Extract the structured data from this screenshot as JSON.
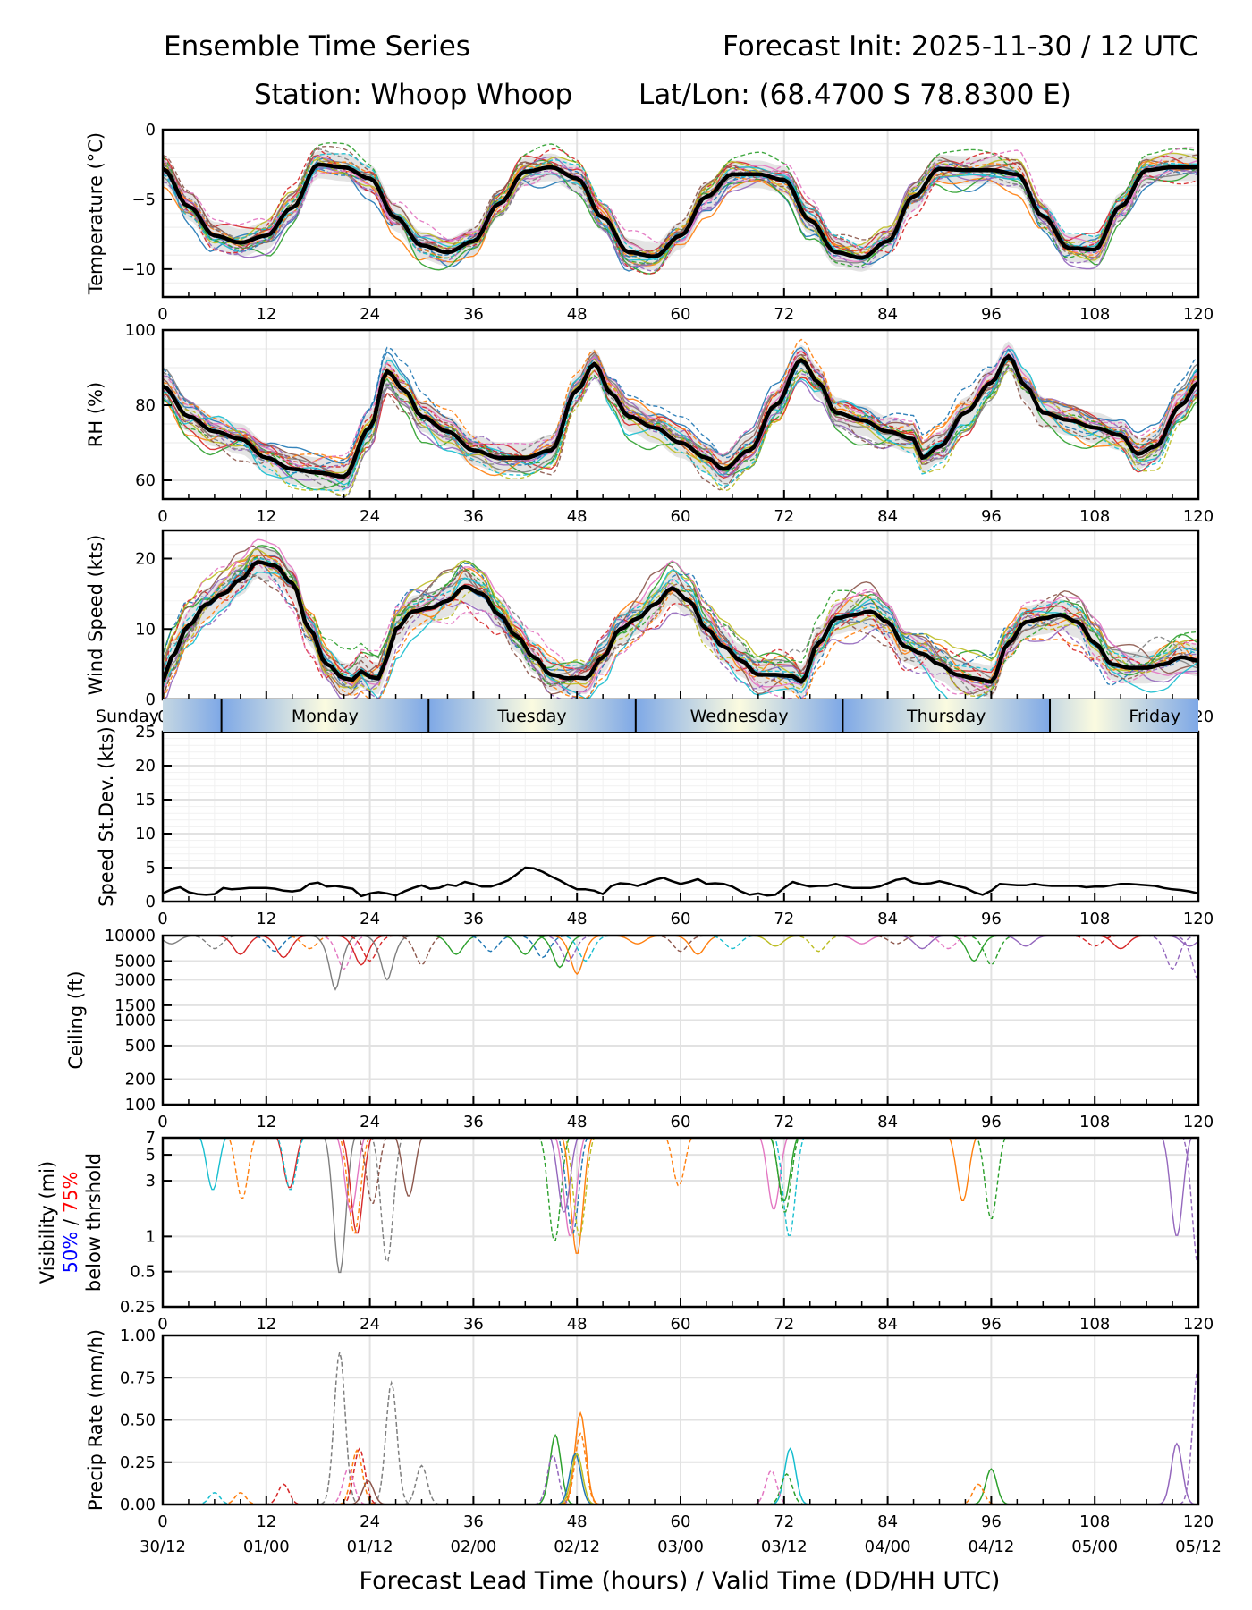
{
  "header": {
    "title": "Ensemble Time Series",
    "init": "Forecast Init: 2025-11-30 / 12 UTC",
    "station": "Station: Whoop Whoop",
    "latlon": "Lat/Lon: (68.4700 S 78.8300 E)"
  },
  "chart_data": [
    {
      "type": "line",
      "id": "temperature",
      "ylabel": "Temperature (°C)",
      "ylim": [
        -12,
        0
      ],
      "yticks": [
        0,
        -5,
        -10
      ],
      "xlim": [
        0,
        120
      ],
      "xticks": [
        0,
        12,
        24,
        36,
        48,
        60,
        72,
        84,
        96,
        108,
        120
      ],
      "grid": true,
      "mean": {
        "x": [
          0,
          3,
          6,
          9,
          12,
          15,
          18,
          21,
          24,
          27,
          30,
          33,
          36,
          39,
          42,
          45,
          48,
          51,
          54,
          57,
          60,
          63,
          66,
          69,
          72,
          75,
          78,
          81,
          84,
          87,
          90,
          93,
          96,
          99,
          102,
          105,
          108,
          111,
          114,
          117,
          120
        ],
        "y": [
          -2.8,
          -5.5,
          -7.6,
          -8.1,
          -7.6,
          -5.6,
          -2.5,
          -2.7,
          -3.5,
          -6.3,
          -8.3,
          -8.8,
          -8.0,
          -5.3,
          -3.0,
          -2.7,
          -3.5,
          -6.3,
          -8.8,
          -9.1,
          -7.6,
          -4.8,
          -3.2,
          -3.2,
          -3.6,
          -6.5,
          -8.8,
          -9.2,
          -8.0,
          -4.8,
          -2.8,
          -2.9,
          -2.9,
          -3.2,
          -6.2,
          -8.5,
          -8.6,
          -5.5,
          -2.9,
          -2.7,
          -2.7
        ]
      },
      "spread_note": "ensemble members (dashed/solid colored) within ~±2 °C of mean; gray band = interquartile range"
    },
    {
      "type": "line",
      "id": "rh",
      "ylabel": "RH (%)",
      "ylim": [
        55,
        100
      ],
      "yticks": [
        60,
        80,
        100
      ],
      "xlim": [
        0,
        120
      ],
      "xticks": [
        0,
        12,
        24,
        36,
        48,
        60,
        72,
        84,
        96,
        108,
        120
      ],
      "grid": true,
      "mean": {
        "x": [
          0,
          3,
          6,
          9,
          12,
          15,
          18,
          21,
          24,
          26,
          28,
          30,
          33,
          36,
          39,
          42,
          45,
          48,
          50,
          52,
          54,
          57,
          60,
          63,
          65,
          68,
          71,
          74,
          76,
          78,
          81,
          84,
          87,
          88,
          90,
          93,
          96,
          98,
          100,
          102,
          105,
          108,
          111,
          113,
          115,
          118,
          120
        ],
        "y": [
          85,
          77,
          73,
          71,
          66,
          63,
          62,
          61,
          74,
          89,
          84,
          77,
          73,
          68,
          66,
          66,
          68,
          84,
          91,
          83,
          77,
          74,
          70,
          66,
          63,
          68,
          80,
          92,
          86,
          78,
          76,
          73,
          71,
          66,
          69,
          78,
          86,
          93,
          85,
          78,
          76,
          74,
          72,
          67,
          69,
          80,
          86
        ]
      }
    },
    {
      "type": "line",
      "id": "wind",
      "ylabel": "Wind Speed (kts)",
      "ylim": [
        0,
        24
      ],
      "yticks": [
        0,
        10,
        20
      ],
      "xlim": [
        0,
        120
      ],
      "xticks": [
        0,
        12,
        24,
        36,
        48,
        60,
        72,
        84,
        96,
        108,
        120
      ],
      "grid": true,
      "mean": {
        "x": [
          0,
          1,
          3,
          5,
          7,
          9,
          11,
          13,
          15,
          17,
          19,
          21,
          22,
          23,
          24,
          25,
          26,
          27,
          29,
          31,
          33,
          35,
          37,
          39,
          41,
          43,
          45,
          47,
          48,
          49,
          51,
          53,
          55,
          57,
          59,
          61,
          63,
          65,
          67,
          69,
          71,
          73,
          74,
          76,
          78,
          80,
          82,
          84,
          86,
          88,
          90,
          92,
          94,
          96,
          98,
          100,
          102,
          104,
          106,
          108,
          110,
          112,
          114,
          116,
          118,
          120
        ],
        "y": [
          2.5,
          6,
          10.5,
          13.5,
          15,
          17,
          19.5,
          19,
          16.5,
          10,
          5,
          3,
          2.8,
          4,
          3.2,
          3,
          6,
          10,
          12.5,
          13,
          14,
          16,
          15,
          12,
          9,
          6,
          3.5,
          3,
          3.1,
          3,
          6,
          10,
          11.5,
          13.5,
          15.8,
          14,
          10,
          7.5,
          5.5,
          3.5,
          3.5,
          3.3,
          2.5,
          8,
          11.5,
          12,
          12.5,
          11,
          7.5,
          6.5,
          5,
          3.5,
          3,
          2.5,
          8,
          11,
          11.5,
          12,
          11,
          8,
          5,
          4.5,
          4.5,
          5,
          6,
          5.5
        ]
      }
    },
    {
      "type": "line",
      "id": "speed_stdev",
      "ylabel": "Speed St.Dev. (kts)",
      "ylim": [
        0,
        25
      ],
      "yticks": [
        0,
        5,
        10,
        15,
        20,
        25
      ],
      "xlim": [
        0,
        120
      ],
      "xticks": [
        0,
        12,
        24,
        36,
        48,
        60,
        72,
        84,
        96,
        108,
        120
      ],
      "grid": true,
      "series": [
        {
          "name": "Speed St.Dev.",
          "x": [
            0,
            1,
            2,
            3,
            4,
            5,
            6,
            7,
            8,
            9,
            10,
            11,
            12,
            13,
            14,
            15,
            16,
            17,
            18,
            19,
            20,
            21,
            22,
            23,
            24,
            25,
            26,
            27,
            28,
            29,
            30,
            31,
            32,
            33,
            34,
            35,
            36,
            37,
            38,
            39,
            40,
            41,
            42,
            43,
            44,
            45,
            46,
            47,
            48,
            49,
            50,
            51,
            52,
            53,
            54,
            55,
            56,
            57,
            58,
            59,
            60,
            61,
            62,
            63,
            64,
            65,
            66,
            67,
            68,
            69,
            70,
            71,
            72,
            73,
            74,
            75,
            76,
            77,
            78,
            79,
            80,
            81,
            82,
            83,
            84,
            85,
            86,
            87,
            88,
            89,
            90,
            91,
            92,
            93,
            94,
            95,
            96,
            97,
            98,
            99,
            100,
            101,
            102,
            103,
            104,
            105,
            106,
            107,
            108,
            109,
            110,
            111,
            112,
            113,
            114,
            115,
            116,
            117,
            118,
            119,
            120
          ],
          "y": [
            1.2,
            1.8,
            2.1,
            1.4,
            1.1,
            1.0,
            1.1,
            2.0,
            1.8,
            1.9,
            2.0,
            2.0,
            2.0,
            1.9,
            1.6,
            1.5,
            1.7,
            2.6,
            2.8,
            2.2,
            2.3,
            2.1,
            1.9,
            0.8,
            1.2,
            1.4,
            1.2,
            0.9,
            1.5,
            2.0,
            2.4,
            1.9,
            2.0,
            2.5,
            2.3,
            2.9,
            2.6,
            2.2,
            2.2,
            2.6,
            3.1,
            4.0,
            5.0,
            4.9,
            4.4,
            3.7,
            3.1,
            2.4,
            1.8,
            1.8,
            1.6,
            1.1,
            2.3,
            2.7,
            2.6,
            2.3,
            2.7,
            3.2,
            3.5,
            3.0,
            2.6,
            2.9,
            3.3,
            2.6,
            2.7,
            2.6,
            2.2,
            1.5,
            1.0,
            1.2,
            0.9,
            1.0,
            2.0,
            2.9,
            2.5,
            2.2,
            2.3,
            2.3,
            2.6,
            2.2,
            2.0,
            2.0,
            2.0,
            2.2,
            2.7,
            3.2,
            3.4,
            2.8,
            2.6,
            2.7,
            3.0,
            2.7,
            2.3,
            2.0,
            1.4,
            1.0,
            1.6,
            2.6,
            2.5,
            2.4,
            2.4,
            2.6,
            2.4,
            2.3,
            2.3,
            2.3,
            2.3,
            2.1,
            2.2,
            2.2,
            2.4,
            2.6,
            2.6,
            2.5,
            2.4,
            2.3,
            2.0,
            1.8,
            1.7,
            1.5,
            1.2
          ]
        }
      ]
    },
    {
      "type": "line",
      "id": "ceiling",
      "ylabel": "Ceiling (ft)",
      "yscale": "log",
      "ylim": [
        100,
        10000
      ],
      "yticks": [
        100,
        200,
        500,
        1000,
        1500,
        3000,
        5000,
        10000
      ],
      "xlim": [
        0,
        120
      ],
      "xticks": [
        0,
        12,
        24,
        36,
        48,
        60,
        72,
        84,
        96,
        108,
        120
      ],
      "grid": true,
      "member_minima_note": "members mostly at/near 10000 ft; lowest dips ~2300 ft near hour 20 (gray dashed), ~3500 ft near hour 48 (orange), ~3000 ft at hour 120 (purple dashed)"
    },
    {
      "type": "line",
      "id": "visibility",
      "ylabel": "Visibility (mi)",
      "ylabel_50": "50%",
      "ylabel_sep": " / ",
      "ylabel_75": "75%",
      "ylabel_line3": "below thrshold",
      "yscale": "log",
      "ylim": [
        0.25,
        7
      ],
      "yticks": [
        0.25,
        0.5,
        1,
        3,
        5,
        7
      ],
      "xlim": [
        0,
        120
      ],
      "xticks": [
        0,
        12,
        24,
        36,
        48,
        60,
        72,
        84,
        96,
        108,
        120
      ],
      "grid": true,
      "member_minima_note": "dips: ~0.5 mi near hour 20 (gray dashed), ~0.7 mi near hour 48 (orange), ~1.0 mi near hour 72 (cyan), ~1.4 mi near hour 96 (green), ~0.55 mi at hour 120 (purple dashed)"
    },
    {
      "type": "line",
      "id": "precip",
      "ylabel": "Precip Rate (mm/h)",
      "ylim": [
        0,
        1
      ],
      "yticks": [
        0.0,
        0.25,
        0.5,
        0.75,
        1.0
      ],
      "ytick_labels": [
        "0.00",
        "0.25",
        "0.50",
        "0.75",
        "1.00"
      ],
      "xlim": [
        0,
        120
      ],
      "xticks": [
        0,
        12,
        24,
        36,
        48,
        60,
        72,
        84,
        96,
        108,
        120
      ],
      "xtick_time_labels": [
        "30/12",
        "01/00",
        "01/12",
        "02/00",
        "02/12",
        "03/00",
        "03/12",
        "04/00",
        "04/12",
        "05/00",
        "05/12"
      ],
      "grid": true,
      "xlabel": "Forecast Lead Time (hours) / Valid Time (DD/HH UTC)",
      "peaks": [
        {
          "member": "gray-dashed",
          "x": 20.5,
          "y": 0.9
        },
        {
          "member": "gray-dashed",
          "x": 26.5,
          "y": 0.72
        },
        {
          "member": "gray-dashed",
          "x": 30,
          "y": 0.23
        },
        {
          "member": "red-dashed",
          "x": 22.8,
          "y": 0.33
        },
        {
          "member": "orange-dashed",
          "x": 22.5,
          "y": 0.32
        },
        {
          "member": "pink-dashed",
          "x": 21.5,
          "y": 0.21
        },
        {
          "member": "brown-solid",
          "x": 23.8,
          "y": 0.14
        },
        {
          "member": "red-dashed",
          "x": 14,
          "y": 0.12
        },
        {
          "member": "orange-dashed",
          "x": 9,
          "y": 0.07
        },
        {
          "member": "cyan-dashed",
          "x": 6,
          "y": 0.07
        },
        {
          "member": "green-solid",
          "x": 45.5,
          "y": 0.41
        },
        {
          "member": "orange-solid",
          "x": 48.4,
          "y": 0.54
        },
        {
          "member": "orange-dashed",
          "x": 48.4,
          "y": 0.42
        },
        {
          "member": "blue-solid",
          "x": 47.8,
          "y": 0.3
        },
        {
          "member": "purple-dashed",
          "x": 45.2,
          "y": 0.29
        },
        {
          "member": "olive-solid",
          "x": 48,
          "y": 0.3
        },
        {
          "member": "cyan-solid",
          "x": 72.7,
          "y": 0.33
        },
        {
          "member": "green-dashed",
          "x": 72.3,
          "y": 0.18
        },
        {
          "member": "pink-dashed",
          "x": 70.5,
          "y": 0.2
        },
        {
          "member": "green-solid",
          "x": 96,
          "y": 0.21
        },
        {
          "member": "orange-dashed",
          "x": 94.5,
          "y": 0.12
        },
        {
          "member": "purple-solid",
          "x": 117.5,
          "y": 0.36
        },
        {
          "member": "purple-dashed",
          "x": 120,
          "y": 0.82
        }
      ]
    }
  ],
  "day_bar": {
    "days": [
      {
        "label": "Sunday",
        "start": 0,
        "end": 6.8
      },
      {
        "label": "Monday",
        "start": 6.8,
        "end": 30.8
      },
      {
        "label": "Tuesday",
        "start": 30.8,
        "end": 54.8
      },
      {
        "label": "Wednesday",
        "start": 54.8,
        "end": 78.8
      },
      {
        "label": "Thursday",
        "start": 78.8,
        "end": 102.8
      },
      {
        "label": "Friday",
        "start": 102.8,
        "end": 120
      }
    ],
    "night_color": "#7ea8e6",
    "noon_color": "#fbfbe0"
  },
  "colors": {
    "mean": "#000000",
    "spread": "#d9d9d9",
    "members": [
      "#1f77b4",
      "#ff7f0e",
      "#2ca02c",
      "#d62728",
      "#9467bd",
      "#8c564b",
      "#e377c2",
      "#7f7f7f",
      "#bcbd22",
      "#17becf"
    ],
    "vis_50": "#0000ff",
    "vis_75": "#ff0000"
  }
}
